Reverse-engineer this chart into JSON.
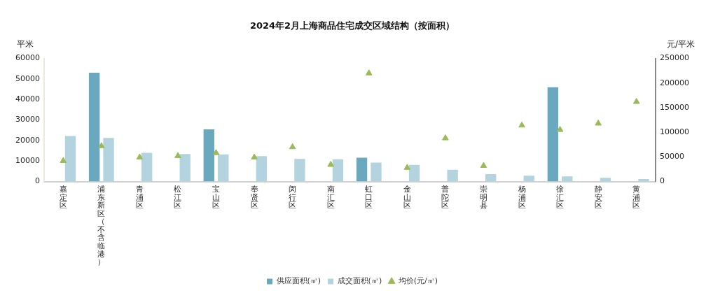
{
  "chart_data": {
    "type": "bar",
    "title": "2024年2月上海商品住宅成交区域结构（按面积）",
    "ylabel": "平米",
    "y2label": "元/平米",
    "categories": [
      "嘉定区",
      "浦东新区（不含临港）",
      "青浦区",
      "松江区",
      "宝山区",
      "奉贤区",
      "闵行区",
      "南汇区",
      "虹口区",
      "金山区",
      "普陀区",
      "崇明县",
      "杨浦区",
      "徐汇区",
      "静安区",
      "黄浦区"
    ],
    "series": [
      {
        "name": "供应面积(㎡)",
        "color": "#6aa8c0",
        "values": [
          null,
          53000,
          null,
          null,
          25400,
          null,
          null,
          null,
          11600,
          null,
          null,
          null,
          null,
          46000,
          null,
          null
        ]
      },
      {
        "name": "成交面积(㎡)",
        "color": "#b3d3de",
        "values": [
          22200,
          21200,
          14000,
          13400,
          13200,
          12400,
          11000,
          10800,
          9200,
          8100,
          5700,
          3600,
          2800,
          2500,
          1800,
          1200
        ]
      },
      {
        "name": "均价(元/㎡)",
        "type": "scatter",
        "axis": "y2",
        "marker": "triangle",
        "color": "#9bbb59",
        "values": [
          42000,
          72000,
          49000,
          52000,
          58000,
          49000,
          70000,
          34000,
          220000,
          28000,
          88000,
          32000,
          114000,
          105000,
          118000,
          162000
        ]
      }
    ],
    "ylim": [
      0,
      60000
    ],
    "yticks": [
      0,
      10000,
      20000,
      30000,
      40000,
      50000,
      60000
    ],
    "y2lim": [
      0,
      250000
    ],
    "y2ticks": [
      0,
      50000,
      100000,
      150000,
      200000,
      250000
    ],
    "grid": false,
    "legend": "bottom"
  }
}
